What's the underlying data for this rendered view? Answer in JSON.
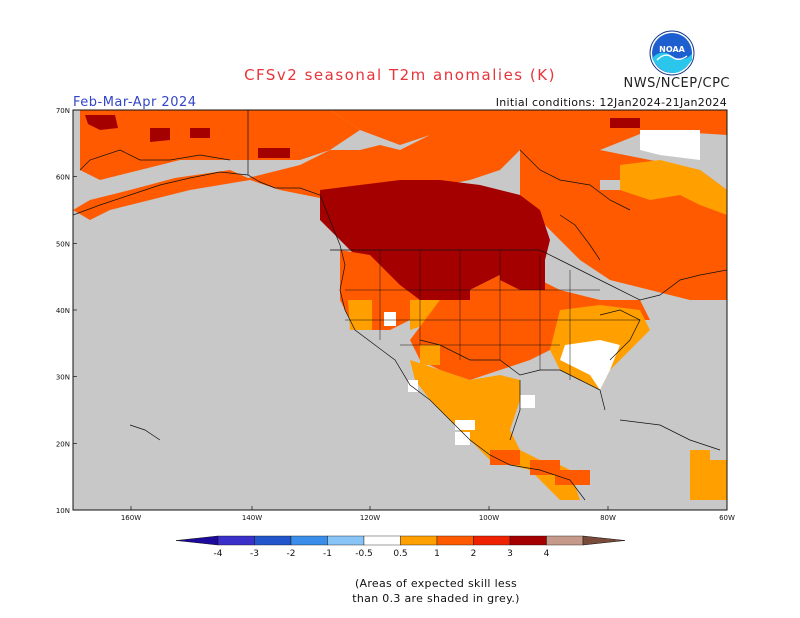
{
  "header": {
    "title": "CFSv2 seasonal T2m anomalies (K)",
    "agency": "NWS/NCEP/CPC",
    "season": "Feb-Mar-Apr 2024",
    "initial_conditions": "Initial conditions: 12Jan2024-21Jan2024",
    "logo_text": "NOAA"
  },
  "map": {
    "lat_labels": [
      "70N",
      "60N",
      "50N",
      "40N",
      "30N",
      "20N",
      "10N"
    ],
    "lon_labels": [
      "160W",
      "140W",
      "120W",
      "100W",
      "80W",
      "60W"
    ],
    "land_no_skill_color": "#c8c8c8",
    "ocean_color": "#c8c8c8"
  },
  "legend": {
    "tick_labels": [
      "-4",
      "-3",
      "-2",
      "-1",
      "-0.5",
      "0.5",
      "1",
      "2",
      "3",
      "4"
    ],
    "bins": [
      {
        "color": "#1c0a9c"
      },
      {
        "color": "#3b2fc9"
      },
      {
        "color": "#2255cc"
      },
      {
        "color": "#3a8de8"
      },
      {
        "color": "#88c4f5"
      },
      {
        "color": "#ffffff"
      },
      {
        "color": "#ff9f00"
      },
      {
        "color": "#ff5a00"
      },
      {
        "color": "#ee2200"
      },
      {
        "color": "#a50000"
      },
      {
        "color": "#c59a8a"
      },
      {
        "color": "#7a4a3a"
      }
    ]
  },
  "footnote": {
    "line1": "(Areas of expected skill less",
    "line2": "than 0.3 are shaded in grey.)"
  }
}
